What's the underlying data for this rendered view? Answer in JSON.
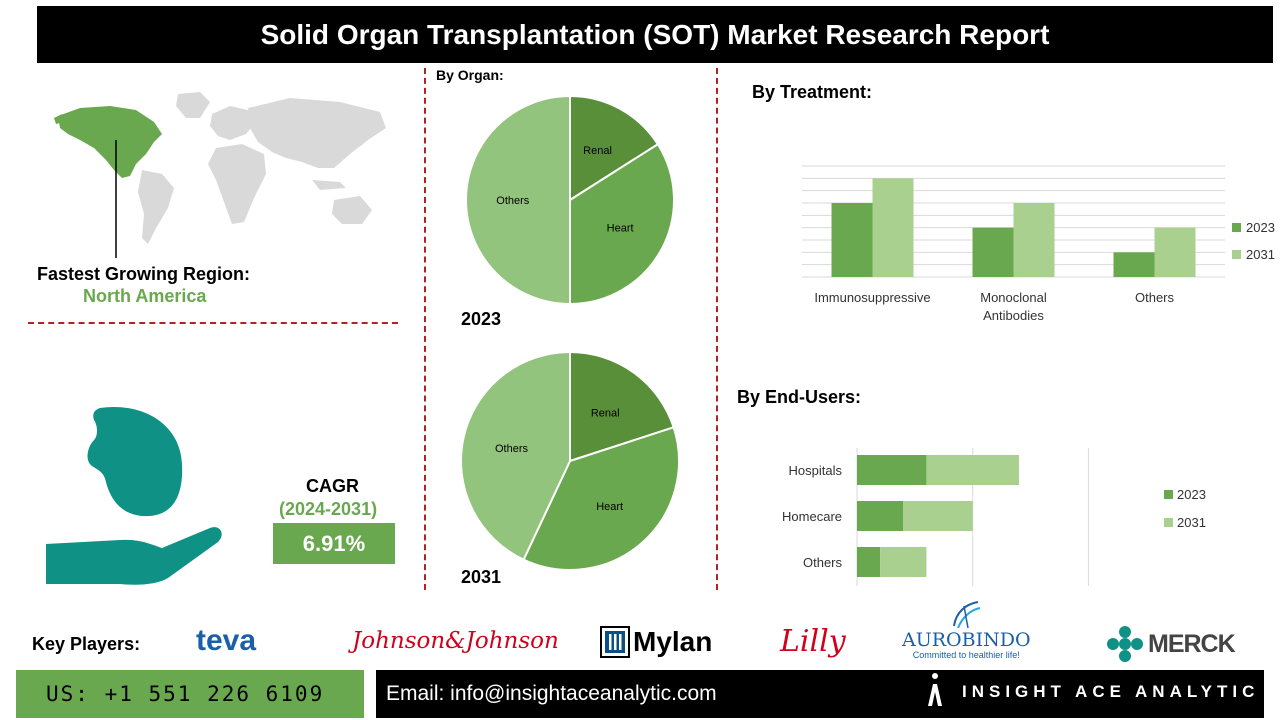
{
  "header": {
    "title": "Solid Organ Transplantation (SOT) Market Research Report"
  },
  "region": {
    "label": "Fastest Growing Region:",
    "value": "North America"
  },
  "cagr": {
    "label": "CAGR",
    "period": "(2024-2031)",
    "value": "6.91%"
  },
  "colors": {
    "dark_green": "#5a8f3a",
    "mid_green": "#6aa84f",
    "light_green": "#93c47d",
    "pale_green": "#a9d08e",
    "teal": "#0f9186",
    "divider": "#b22222"
  },
  "by_organ": {
    "title": "By Organ:"
  },
  "by_treatment": {
    "title": "By Treatment:"
  },
  "by_end_users": {
    "title": "By End-Users:"
  },
  "chart_data": [
    {
      "type": "pie",
      "title": "2023",
      "labels": [
        "Renal",
        "Heart",
        "Others"
      ],
      "values": [
        16,
        34,
        50
      ],
      "colors": [
        "#5a8f3a",
        "#6aa84f",
        "#93c47d"
      ]
    },
    {
      "type": "pie",
      "title": "2031",
      "labels": [
        "Renal",
        "Heart",
        "Others"
      ],
      "values": [
        20,
        37,
        43
      ],
      "colors": [
        "#5a8f3a",
        "#6aa84f",
        "#93c47d"
      ]
    },
    {
      "type": "bar",
      "categories": [
        "Immunosuppressive",
        "Monoclonal Antibodies",
        "Others"
      ],
      "series": [
        {
          "name": "2023",
          "values": [
            6,
            4,
            2
          ],
          "color": "#6aa84f"
        },
        {
          "name": "2031",
          "values": [
            8,
            6,
            4
          ],
          "color": "#a9d08e"
        }
      ],
      "ylim": [
        0,
        9
      ],
      "grid": true,
      "legend": "right"
    },
    {
      "type": "bar",
      "orientation": "horizontal",
      "categories": [
        "Hospitals",
        "Homecare",
        "Others"
      ],
      "series": [
        {
          "name": "2023",
          "values": [
            3,
            2,
            1
          ],
          "color": "#6aa84f"
        },
        {
          "name": "2031",
          "values": [
            4,
            3,
            2
          ],
          "color": "#a9d08e"
        }
      ],
      "stacked": true,
      "xlim": [
        0,
        10.5
      ],
      "grid": true,
      "legend": "right"
    }
  ],
  "key_players": {
    "label": "Key Players:",
    "logos": [
      "teva",
      "Johnson&Johnson",
      "Mylan",
      "Lilly",
      "AUROBINDO",
      "Committed to healthier life!",
      "MERCK"
    ]
  },
  "contact": {
    "phone": "US: +1 551 226 6109",
    "email": "Email: info@insightaceanalytic.com"
  },
  "brand": {
    "name": "INSIGHT ACE ANALYTIC"
  }
}
